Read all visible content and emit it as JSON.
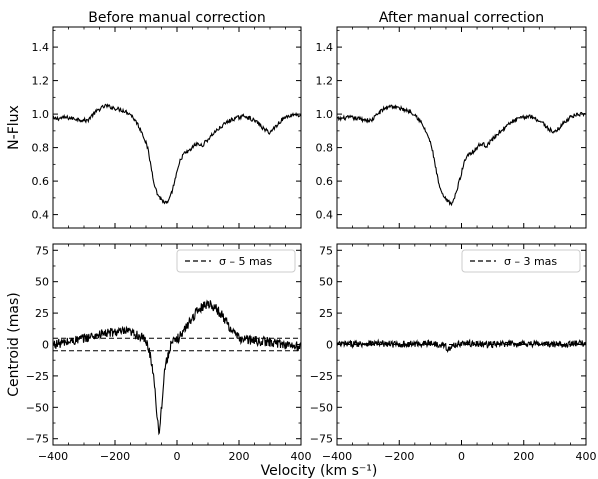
{
  "chart_data": [
    {
      "type": "line",
      "title": "Before manual correction",
      "ylabel": "N-Flux",
      "xlim": [
        -400,
        400
      ],
      "ylim": [
        0.32,
        1.52
      ],
      "xticks": [
        -400,
        -200,
        0,
        200,
        400
      ],
      "yticks": [
        0.4,
        0.6,
        0.8,
        1.0,
        1.2,
        1.4
      ],
      "ytick_labels": [
        "0.4",
        "0.6",
        "0.8",
        "1.0",
        "1.2",
        "1.4"
      ],
      "show_xtick_labels": false,
      "show_ytick_labels": true,
      "series": [
        {
          "line": "solid",
          "x": [
            -400,
            -360,
            -320,
            -290,
            -270,
            -250,
            -230,
            -210,
            -190,
            -170,
            -150,
            -130,
            -110,
            -95,
            -85,
            -75,
            -65,
            -55,
            -45,
            -38,
            -30,
            -22,
            -10,
            0,
            10,
            20,
            30,
            40,
            50,
            60,
            70,
            80,
            90,
            100,
            110,
            120,
            140,
            160,
            180,
            200,
            220,
            240,
            260,
            280,
            300,
            320,
            340,
            360,
            380,
            400
          ],
          "y": [
            0.97,
            0.98,
            0.97,
            0.96,
            1.0,
            1.03,
            1.05,
            1.04,
            1.03,
            1.02,
            1.0,
            0.95,
            0.88,
            0.8,
            0.7,
            0.6,
            0.53,
            0.5,
            0.48,
            0.47,
            0.47,
            0.5,
            0.58,
            0.65,
            0.72,
            0.76,
            0.77,
            0.78,
            0.8,
            0.82,
            0.82,
            0.81,
            0.83,
            0.85,
            0.87,
            0.89,
            0.92,
            0.95,
            0.97,
            0.98,
            0.99,
            0.97,
            0.95,
            0.91,
            0.89,
            0.93,
            0.97,
            0.99,
            1.0,
            0.99
          ]
        }
      ]
    },
    {
      "type": "line",
      "title": "After manual correction",
      "xlim": [
        -400,
        400
      ],
      "ylim": [
        0.32,
        1.52
      ],
      "xticks": [
        -400,
        -200,
        0,
        200,
        400
      ],
      "yticks": [
        0.4,
        0.6,
        0.8,
        1.0,
        1.2,
        1.4
      ],
      "ytick_labels": [
        "0.4",
        "0.6",
        "0.8",
        "1.0",
        "1.2",
        "1.4"
      ],
      "show_xtick_labels": false,
      "show_ytick_labels": true,
      "series": [
        {
          "line": "solid",
          "x": [
            -400,
            -360,
            -320,
            -290,
            -270,
            -250,
            -230,
            -210,
            -190,
            -170,
            -150,
            -130,
            -110,
            -95,
            -85,
            -75,
            -65,
            -55,
            -45,
            -38,
            -30,
            -22,
            -10,
            0,
            10,
            20,
            30,
            40,
            50,
            60,
            70,
            80,
            90,
            100,
            110,
            120,
            140,
            160,
            180,
            200,
            220,
            240,
            260,
            280,
            300,
            320,
            340,
            360,
            380,
            400
          ],
          "y": [
            0.97,
            0.98,
            0.97,
            0.96,
            1.0,
            1.03,
            1.05,
            1.04,
            1.03,
            1.02,
            1.0,
            0.95,
            0.88,
            0.8,
            0.7,
            0.6,
            0.53,
            0.5,
            0.48,
            0.47,
            0.47,
            0.5,
            0.58,
            0.65,
            0.72,
            0.76,
            0.77,
            0.78,
            0.8,
            0.82,
            0.82,
            0.81,
            0.83,
            0.85,
            0.87,
            0.89,
            0.92,
            0.95,
            0.97,
            0.98,
            0.99,
            0.97,
            0.95,
            0.91,
            0.89,
            0.93,
            0.97,
            0.99,
            1.0,
            0.99
          ]
        }
      ]
    },
    {
      "type": "line",
      "ylabel": "Centroid (mas)",
      "xlim": [
        -400,
        400
      ],
      "ylim": [
        -80,
        80
      ],
      "xticks": [
        -400,
        -200,
        0,
        200,
        400
      ],
      "xtick_labels": [
        "−400",
        "−200",
        "0",
        "200",
        "400"
      ],
      "yticks": [
        -75,
        -50,
        -25,
        0,
        25,
        50,
        75
      ],
      "ytick_labels": [
        "−75",
        "−50",
        "−25",
        "0",
        "25",
        "50",
        "75"
      ],
      "show_xtick_labels": true,
      "show_ytick_labels": true,
      "legend": {
        "label": "σ  – 5 mas",
        "placement": "top-right"
      },
      "hlines": [
        5,
        -5
      ],
      "series": [
        {
          "line": "solid",
          "x": [
            -400,
            -350,
            -300,
            -250,
            -200,
            -160,
            -130,
            -110,
            -95,
            -85,
            -75,
            -68,
            -62,
            -58,
            -55,
            -50,
            -45,
            -40,
            -30,
            -20,
            0,
            20,
            40,
            60,
            80,
            100,
            120,
            140,
            160,
            180,
            200,
            250,
            300,
            350,
            400
          ],
          "y": [
            0,
            2,
            5,
            8,
            10,
            10,
            8,
            5,
            0,
            -10,
            -25,
            -45,
            -62,
            -70,
            -65,
            -50,
            -35,
            -20,
            -10,
            0,
            4,
            10,
            18,
            25,
            30,
            33,
            30,
            25,
            18,
            10,
            5,
            3,
            2,
            0,
            -2
          ]
        }
      ]
    },
    {
      "type": "line",
      "xlim": [
        -400,
        400
      ],
      "ylim": [
        -80,
        80
      ],
      "xticks": [
        -400,
        -200,
        0,
        200,
        400
      ],
      "xtick_labels": [
        "−400",
        "−200",
        "0",
        "200",
        "400"
      ],
      "yticks": [
        -75,
        -50,
        -25,
        0,
        25,
        50,
        75
      ],
      "ytick_labels": [
        "−75",
        "−50",
        "−25",
        "0",
        "25",
        "50",
        "75"
      ],
      "show_xtick_labels": true,
      "show_ytick_labels": true,
      "legend": {
        "label": "σ  – 3 mas",
        "placement": "top-right"
      },
      "hlines": [
        0
      ],
      "series": [
        {
          "line": "solid",
          "x": [
            -400,
            -300,
            -200,
            -100,
            -60,
            -40,
            -20,
            0,
            100,
            200,
            300,
            400
          ],
          "y": [
            0,
            1,
            0,
            1,
            0,
            -4,
            0,
            1,
            0,
            1,
            0,
            1
          ]
        }
      ]
    }
  ],
  "xlabel": "Velocity (km s⁻¹)",
  "colors": {
    "line": "#000000",
    "axes": "#000000",
    "background": "#ffffff"
  }
}
